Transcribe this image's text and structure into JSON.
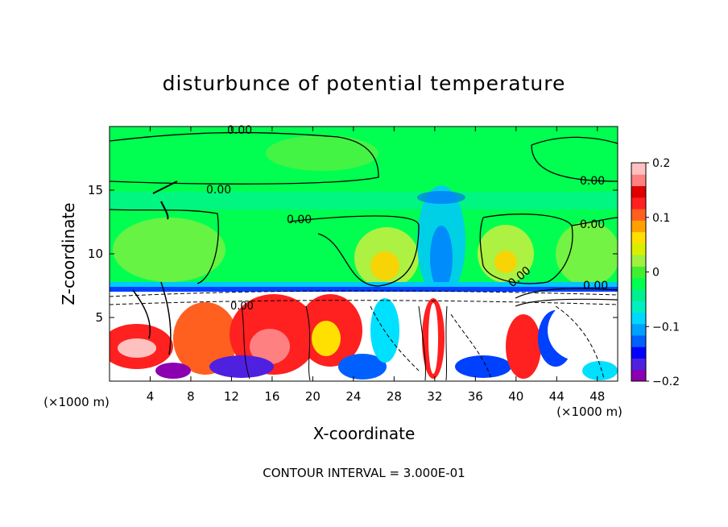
{
  "chart_data": {
    "type": "heatmap",
    "title": "disturbunce of potential temperature",
    "xlabel": "X-coordinate",
    "ylabel": "Z-coordinate",
    "x_unit": "(×1000 m)",
    "y_unit": "(×1000 m)",
    "xlim": [
      0,
      50
    ],
    "ylim": [
      0,
      20
    ],
    "x_ticks": [
      4,
      8,
      12,
      16,
      20,
      24,
      28,
      32,
      36,
      40,
      44,
      48
    ],
    "y_ticks": [
      5,
      10,
      15
    ],
    "colorbar": {
      "ticks": [
        0.2,
        0.1,
        0,
        -0.1,
        -0.2
      ],
      "tick_labels": [
        "0.2",
        "0.1",
        "0",
        "−0.1",
        "−0.2"
      ],
      "range": [
        -0.2,
        0.2
      ],
      "colors": [
        "#8b00b0",
        "#5020e0",
        "#0000ff",
        "#0060ff",
        "#00a0ff",
        "#00d8ff",
        "#00f0c0",
        "#00f090",
        "#00ff50",
        "#40f030",
        "#a0f040",
        "#d8f000",
        "#ffe000",
        "#ffa000",
        "#ff6020",
        "#ff2020",
        "#e00000",
        "#ff8080",
        "#ffc0c0"
      ]
    },
    "contour_interval": "CONTOUR INTERVAL = 3.000E-01",
    "contour_labels": [
      "0.00",
      "0.00",
      "0.00",
      "0.00",
      "0.00",
      "0.00",
      "0.00",
      "0.00",
      "0.00",
      "0.00"
    ],
    "grid": false,
    "legend": "colorbar-right"
  }
}
